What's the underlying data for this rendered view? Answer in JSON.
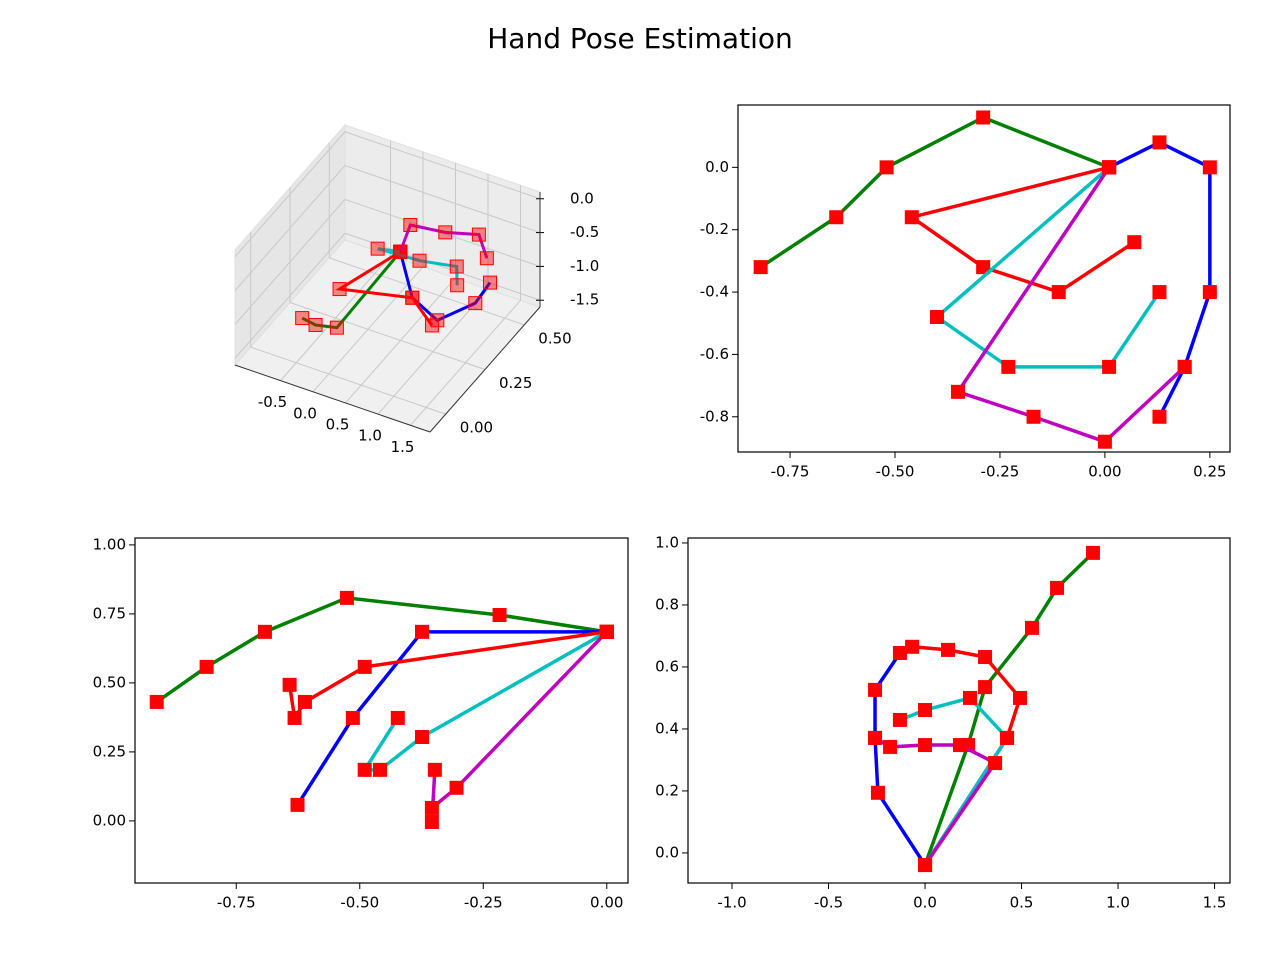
{
  "title": "Hand Pose Estimation",
  "chart_data": [
    {
      "type": "line3d",
      "marker_color": "#ff0000",
      "xlim": [
        -1.2,
        1.8
      ],
      "ylim": [
        -0.1,
        0.6
      ],
      "zlim": [
        -1.6,
        0.1
      ],
      "xticks": [
        -0.5,
        {
          "value": 0,
          "label": "0.0"
        },
        0.5,
        {
          "value": 1,
          "label": "1.0"
        },
        1.5
      ],
      "yticks": [
        {
          "value": 0,
          "label": "0.00"
        },
        0.25,
        {
          "value": 0.5,
          "label": "0.50"
        }
      ],
      "zticks": [
        {
          "value": 0,
          "label": "0.0"
        },
        -0.5,
        {
          "value": -1,
          "label": "-1.0"
        },
        -1.5
      ],
      "series": [
        {
          "color": "#008000",
          "x": [
            0.11,
            0.15,
            -0.13,
            -0.36
          ],
          "y": [
            0.41,
            -0.01,
            -0.03,
            -0.02
          ],
          "z": [
            -0.84,
            -0.84,
            -0.84,
            -0.84
          ]
        },
        {
          "color": "#0000ff",
          "x": [
            0.11,
            0.73,
            1.26,
            1.53,
            1.49
          ],
          "y": [
            0.41,
            0.23,
            0.17,
            0.3,
            0.41
          ],
          "z": [
            -0.84,
            -0.84,
            -0.84,
            -0.84,
            -0.84
          ]
        },
        {
          "color": "#ff0000",
          "x": [
            0.11,
            -0.22,
            0.73,
            1.25
          ],
          "y": [
            0.41,
            0.16,
            0.23,
            0.14
          ],
          "z": [
            -0.84,
            -0.84,
            -0.84,
            -0.84
          ]
        },
        {
          "color": "#00bfbf",
          "x": [
            0.11,
            -0.19,
            0.43,
            0.93,
            1.13
          ],
          "y": [
            0.41,
            0.39,
            0.4,
            0.43,
            0.35
          ],
          "z": [
            -0.84,
            -0.84,
            -0.84,
            -0.84,
            -0.84
          ]
        },
        {
          "color": "#bf00bf",
          "x": [
            0.11,
            -0.05,
            0.44,
            0.86,
            1.2
          ],
          "y": [
            0.41,
            0.54,
            0.56,
            0.6,
            0.51
          ],
          "z": [
            -0.84,
            -0.84,
            -0.84,
            -0.84,
            -0.84
          ]
        }
      ]
    },
    {
      "type": "line",
      "marker_color": "#ff0000",
      "xlim": [
        -0.874,
        0.298
      ],
      "ylim": [
        -0.913,
        0.2
      ],
      "xticks": [
        -0.75,
        {
          "value": -0.5,
          "label": "-0.50"
        },
        -0.25,
        {
          "value": 0,
          "label": "0.00"
        },
        0.25
      ],
      "yticks": [
        {
          "value": 0,
          "label": "0.0"
        },
        -0.2,
        -0.4,
        -0.6,
        -0.8
      ],
      "series": [
        {
          "color": "#008000",
          "x": [
            -0.82,
            -0.64,
            -0.52,
            -0.29,
            0.01
          ],
          "y": [
            -0.32,
            -0.16,
            0,
            0.16,
            0
          ]
        },
        {
          "color": "#0000ff",
          "x": [
            0.01,
            0.13,
            0.25,
            0.25,
            0.19,
            0.13
          ],
          "y": [
            0,
            0.08,
            0,
            -0.4,
            -0.64,
            -0.8
          ]
        },
        {
          "color": "#ff0000",
          "x": [
            0.01,
            -0.46,
            -0.29,
            -0.11,
            0.07
          ],
          "y": [
            0,
            -0.16,
            -0.32,
            -0.4,
            -0.24
          ]
        },
        {
          "color": "#00bfbf",
          "x": [
            0.01,
            -0.4,
            -0.23,
            0.01,
            0.13
          ],
          "y": [
            0,
            -0.48,
            -0.64,
            -0.64,
            -0.4
          ]
        },
        {
          "color": "#bf00bf",
          "x": [
            0.01,
            -0.35,
            -0.17,
            0.0,
            0.19
          ],
          "y": [
            0,
            -0.72,
            -0.8,
            -0.88,
            -0.64
          ]
        }
      ]
    },
    {
      "type": "line",
      "marker_color": "#ff0000",
      "xlim": [
        -0.955,
        0.043
      ],
      "ylim": [
        -0.225,
        1.025
      ],
      "xticks": [
        -0.75,
        {
          "value": -0.5,
          "label": "-0.50"
        },
        -0.25,
        {
          "value": 0,
          "label": "0.00"
        }
      ],
      "yticks": [
        {
          "value": 0,
          "label": "0.00"
        },
        0.25,
        {
          "value": 0.5,
          "label": "0.50"
        },
        0.75,
        {
          "value": 1,
          "label": "1.00"
        }
      ],
      "series": [
        {
          "color": "#008000",
          "x": [
            -0.911,
            -0.81,
            -0.692,
            -0.526,
            -0.217,
            0
          ],
          "y": [
            0.431,
            0.558,
            0.685,
            0.808,
            0.746,
            0.685
          ]
        },
        {
          "color": "#0000ff",
          "x": [
            0,
            -0.374,
            -0.514,
            -0.626
          ],
          "y": [
            0.685,
            0.685,
            0.373,
            0.058
          ]
        },
        {
          "color": "#ff0000",
          "x": [
            0,
            -0.49,
            -0.611,
            -0.632,
            -0.642
          ],
          "y": [
            0.685,
            0.558,
            0.431,
            0.373,
            0.493
          ]
        },
        {
          "color": "#00bfbf",
          "x": [
            0,
            -0.374,
            -0.459,
            -0.49,
            -0.423
          ],
          "y": [
            0.685,
            0.304,
            0.185,
            0.185,
            0.373
          ]
        },
        {
          "color": "#bf00bf",
          "x": [
            0,
            -0.304,
            -0.354,
            -0.354,
            -0.348
          ],
          "y": [
            0.685,
            0.12,
            0.047,
            -0.004,
            0.185
          ]
        }
      ]
    },
    {
      "type": "line",
      "marker_color": "#ff0000",
      "xlim": [
        -1.228,
        1.58
      ],
      "ylim": [
        -0.097,
        1.016
      ],
      "xticks": [
        -1.5,
        {
          "value": -1,
          "label": "-1.0"
        },
        -0.5,
        {
          "value": 0,
          "label": "0.0"
        },
        0.5,
        {
          "value": 1,
          "label": "1.0"
        },
        1.5
      ],
      "yticks": [
        {
          "value": 0,
          "label": "0.0"
        },
        0.2,
        0.4,
        0.6,
        0.8,
        {
          "value": 1,
          "label": "1.0"
        }
      ],
      "series": [
        {
          "color": "#008000",
          "x": [
            0,
            0.223,
            0.311,
            0.554,
            0.684,
            0.87
          ],
          "y": [
            -0.039,
            0.348,
            0.535,
            0.726,
            0.855,
            0.968
          ]
        },
        {
          "color": "#0000ff",
          "x": [
            0,
            -0.244,
            -0.259,
            -0.259,
            -0.13
          ],
          "y": [
            -0.039,
            0.194,
            0.371,
            0.526,
            0.645
          ]
        },
        {
          "color": "#ff0000",
          "x": [
            0,
            0.425,
            0.492,
            0.311,
            0.119,
            -0.067
          ],
          "y": [
            -0.039,
            0.371,
            0.5,
            0.632,
            0.655,
            0.665
          ]
        },
        {
          "color": "#00bfbf",
          "x": [
            0,
            0.425,
            0.233,
            0,
            -0.13
          ],
          "y": [
            -0.039,
            0.371,
            0.5,
            0.461,
            0.429
          ]
        },
        {
          "color": "#bf00bf",
          "x": [
            0,
            0.363,
            0.181,
            0,
            -0.181,
            -0.259
          ],
          "y": [
            -0.039,
            0.29,
            0.348,
            0.348,
            0.342,
            0.371
          ]
        }
      ]
    }
  ]
}
